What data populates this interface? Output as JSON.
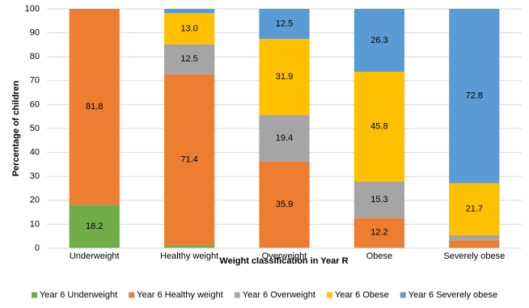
{
  "chart_data": {
    "type": "stacked_bar",
    "x_label": "Weight classification in Year R",
    "y_label": "Percentage of children",
    "categories": [
      "Underweight",
      "Healthy weight",
      "Overweight",
      "Obese",
      "Severely obese"
    ],
    "series": [
      {
        "name": "Year 6 Underweight",
        "color": "#70ad47",
        "values": [
          18.2,
          1.3,
          0.3,
          0.4,
          0
        ],
        "value_labels": [
          "18.2",
          null,
          null,
          null,
          null
        ]
      },
      {
        "name": "Year 6 Healthy weight",
        "color": "#ed7d31",
        "values": [
          81.8,
          71.4,
          35.9,
          12.2,
          3.3
        ],
        "value_labels": [
          "81.8",
          "71.4",
          "35.9",
          "12.2",
          null
        ]
      },
      {
        "name": "Year 6 Overweight",
        "color": "#a5a5a5",
        "values": [
          0,
          12.5,
          19.4,
          15.3,
          2.2
        ],
        "value_labels": [
          null,
          "12.5",
          "19.4",
          "15.3",
          null
        ]
      },
      {
        "name": "Year 6 Obese",
        "color": "#ffc000",
        "values": [
          0,
          13.0,
          31.9,
          45.8,
          21.7
        ],
        "value_labels": [
          null,
          "13.0",
          "31.9",
          "45.8",
          "21.7"
        ]
      },
      {
        "name": "Year 6 Severely obese",
        "color": "#5b9bd5",
        "values": [
          0,
          1.8,
          12.5,
          26.3,
          72.8
        ],
        "value_labels": [
          null,
          null,
          "12.5",
          "26.3",
          "72.8"
        ]
      }
    ],
    "ylim": [
      0,
      100
    ],
    "yticks": [
      0,
      10,
      20,
      30,
      40,
      50,
      60,
      70,
      80,
      90,
      100
    ],
    "grid": true,
    "legend": "bottom"
  }
}
